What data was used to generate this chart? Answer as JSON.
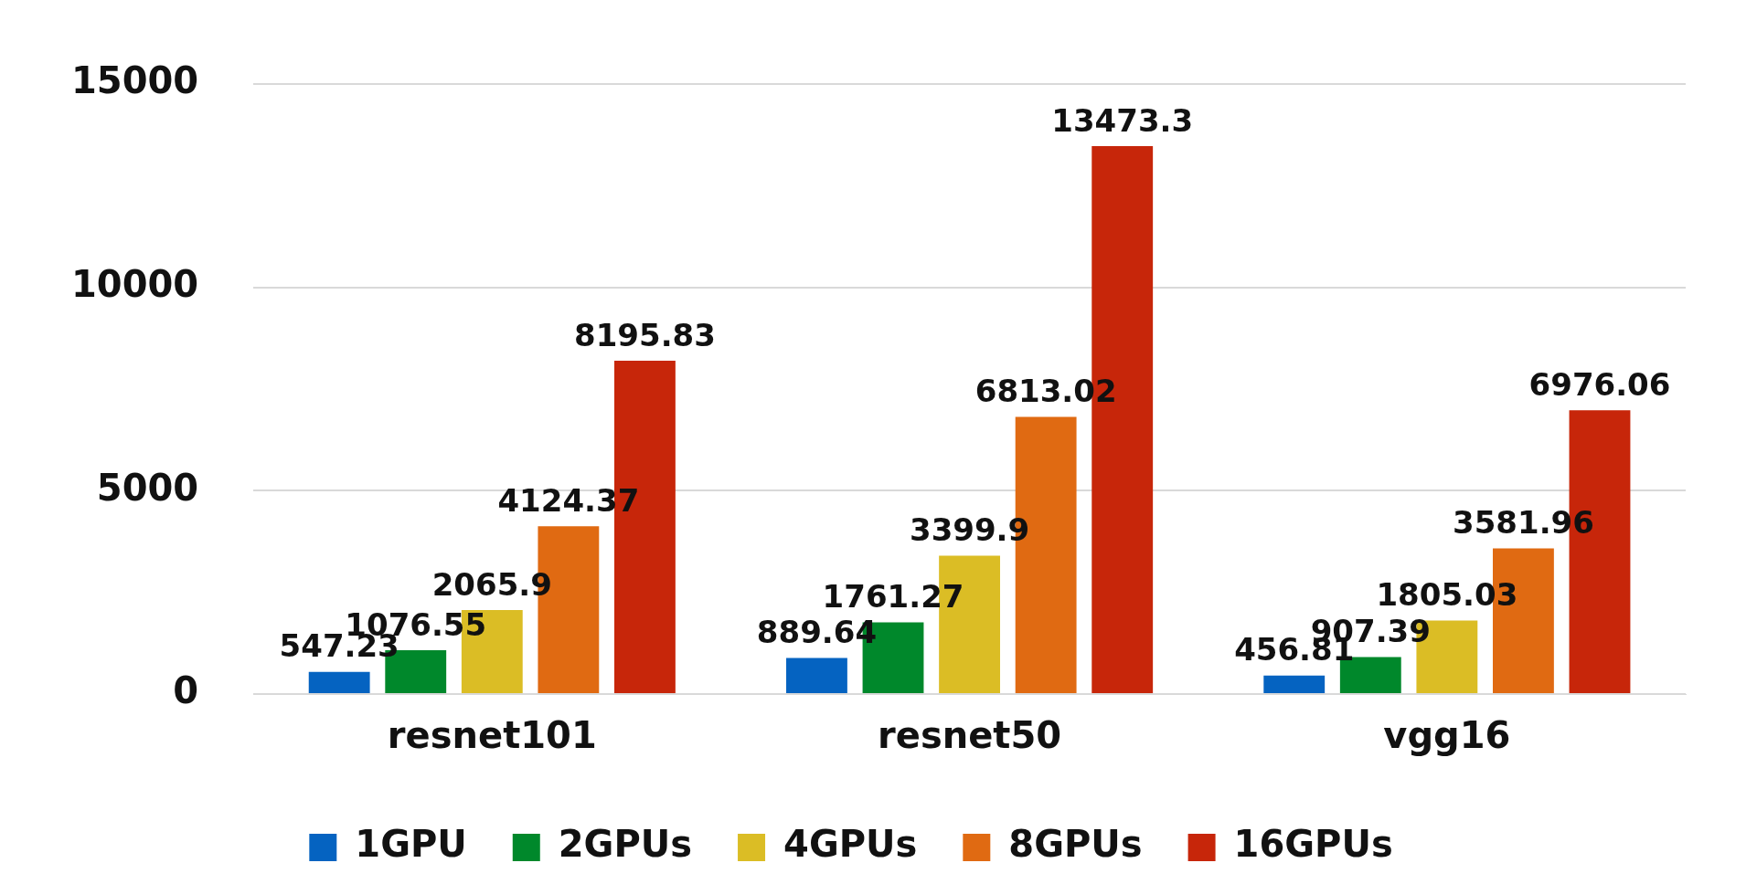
{
  "chart_data": {
    "type": "bar",
    "categories": [
      "resnet101",
      "resnet50",
      "vgg16"
    ],
    "series": [
      {
        "name": "1GPU",
        "color": "#0563c1",
        "values": [
          547.23,
          889.64,
          456.81
        ]
      },
      {
        "name": "2GPUs",
        "color": "#00882b",
        "values": [
          1076.55,
          1761.27,
          907.39
        ]
      },
      {
        "name": "4GPUs",
        "color": "#dbbd25",
        "values": [
          2065.9,
          3399.9,
          1805.03
        ]
      },
      {
        "name": "8GPUs",
        "color": "#e06a12",
        "values": [
          4124.37,
          6813.02,
          3581.96
        ]
      },
      {
        "name": "16GPUs",
        "color": "#c7260a",
        "values": [
          8195.83,
          13473.3,
          6976.06
        ]
      }
    ],
    "ylim": [
      0,
      15000
    ],
    "yticks": [
      0,
      5000,
      10000,
      15000
    ],
    "grid": "y",
    "legend": "bottom",
    "data_labels": true
  }
}
